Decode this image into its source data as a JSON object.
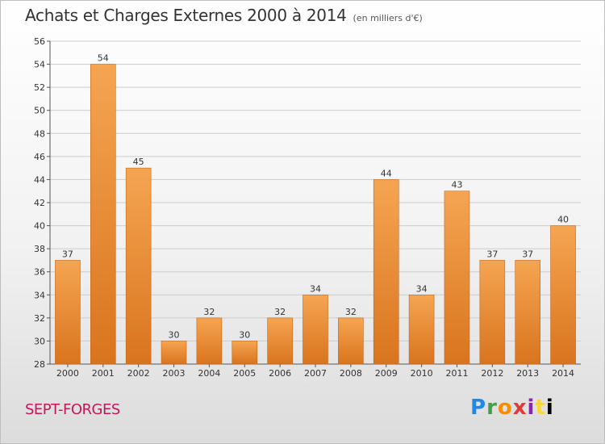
{
  "header": {
    "title": "Achats et Charges Externes 2000 à 2014",
    "unit": "(en milliers d'€)"
  },
  "footer": {
    "place": "SEPT-FORGES",
    "logo": "Proxiti"
  },
  "colors": {
    "bar_top": "#f5a552",
    "bar_bottom": "#d9741e",
    "grid": "#cccccc"
  },
  "chart_data": {
    "type": "bar",
    "title": "Achats et Charges Externes 2000 à 2014",
    "subtitle": "(en milliers d'€)",
    "xlabel": "",
    "ylabel": "",
    "categories": [
      "2000",
      "2001",
      "2002",
      "2003",
      "2004",
      "2005",
      "2006",
      "2007",
      "2008",
      "2009",
      "2010",
      "2011",
      "2012",
      "2013",
      "2014"
    ],
    "values": [
      37,
      54,
      45,
      30,
      32,
      30,
      32,
      34,
      32,
      44,
      34,
      43,
      37,
      37,
      40
    ],
    "ylim": [
      28,
      56
    ],
    "yticks": [
      28,
      30,
      32,
      34,
      36,
      38,
      40,
      42,
      44,
      46,
      48,
      50,
      52,
      54,
      56
    ],
    "grid": true,
    "data_labels": true
  }
}
